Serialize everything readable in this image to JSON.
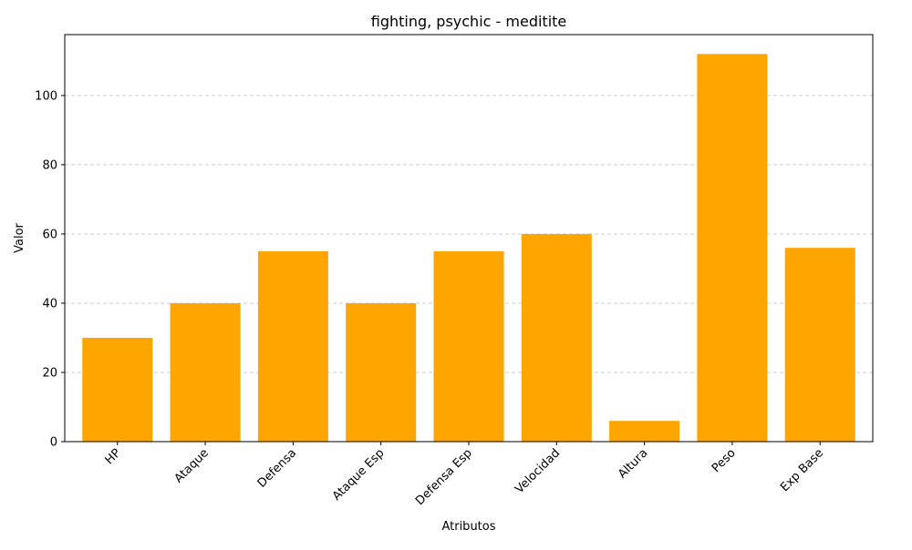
{
  "chart_data": {
    "type": "bar",
    "title": "fighting, psychic - meditite",
    "xlabel": "Atributos",
    "ylabel": "Valor",
    "categories": [
      "HP",
      "Ataque",
      "Defensa",
      "Ataque Esp",
      "Defensa Esp",
      "Velocidad",
      "Altura",
      "Peso",
      "Exp Base"
    ],
    "values": [
      30,
      40,
      55,
      40,
      55,
      60,
      6,
      112,
      56
    ],
    "ylim": [
      0,
      117.6
    ],
    "yticks": [
      0,
      20,
      40,
      60,
      80,
      100
    ],
    "ytick_labels": [
      "0",
      "20",
      "40",
      "60",
      "80",
      "100"
    ],
    "xtick_rotation_deg": 45,
    "grid": "y-dashed",
    "legend": "none",
    "bar_color": "#FFA500",
    "grid_color": "#cccccc"
  }
}
